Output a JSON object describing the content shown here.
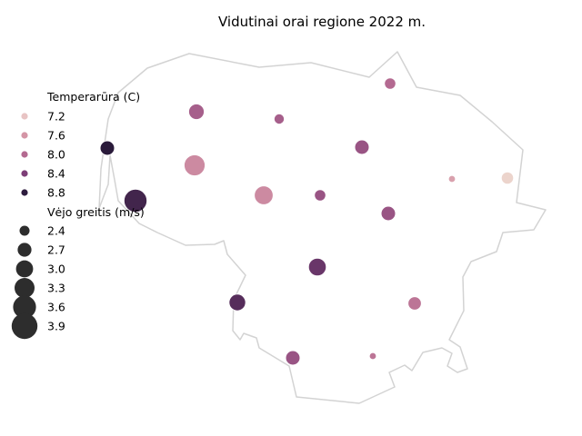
{
  "title": "Vidutinai orai regione 2022 m.",
  "legend": {
    "temperature_title": "Temperarūra (C)",
    "temperature_entries": [
      {
        "label": "7.2",
        "value": 7.2,
        "color": "#e8c4c4"
      },
      {
        "label": "7.6",
        "value": 7.6,
        "color": "#d495a6"
      },
      {
        "label": "8.0",
        "value": 8.0,
        "color": "#b46a91"
      },
      {
        "label": "8.4",
        "value": 8.4,
        "color": "#7d3e77"
      },
      {
        "label": "8.8",
        "value": 8.8,
        "color": "#2e1c3e"
      }
    ],
    "wind_title": "Vėjo greitis (m/s)",
    "wind_entries": [
      {
        "label": "2.4",
        "value": 2.4
      },
      {
        "label": "2.7",
        "value": 2.7
      },
      {
        "label": "3.0",
        "value": 3.0
      },
      {
        "label": "3.3",
        "value": 3.3
      },
      {
        "label": "3.6",
        "value": 3.6
      },
      {
        "label": "3.9",
        "value": 3.9
      }
    ],
    "wind_marker_color": "#2d2d2d"
  },
  "colors": {
    "boundary": "#d3d3d3",
    "temp_low": "#ecd4cc",
    "temp_mid": "#b46a91",
    "temp_high": "#2a1a3a"
  },
  "chart_data": {
    "type": "scatter",
    "color_variable": "Temperarūra (C)",
    "size_variable": "Vėjo greitis (m/s)",
    "stations": [
      {
        "temp": 8.0,
        "wind": 2.7
      },
      {
        "temp": 8.1,
        "wind": 3.1
      },
      {
        "temp": 8.1,
        "wind": 2.6
      },
      {
        "temp": 8.2,
        "wind": 3.0
      },
      {
        "temp": 8.9,
        "wind": 3.0
      },
      {
        "temp": 7.7,
        "wind": 3.6
      },
      {
        "temp": 7.7,
        "wind": 3.4
      },
      {
        "temp": 8.2,
        "wind": 2.7
      },
      {
        "temp": 7.5,
        "wind": 2.3
      },
      {
        "temp": 7.1,
        "wind": 2.8
      },
      {
        "temp": 8.7,
        "wind": 3.8
      },
      {
        "temp": 8.2,
        "wind": 3.0
      },
      {
        "temp": 8.5,
        "wind": 3.3
      },
      {
        "temp": 8.6,
        "wind": 3.2
      },
      {
        "temp": 7.9,
        "wind": 2.9
      },
      {
        "temp": 8.2,
        "wind": 3.0
      },
      {
        "temp": 7.9,
        "wind": 2.3
      }
    ]
  }
}
